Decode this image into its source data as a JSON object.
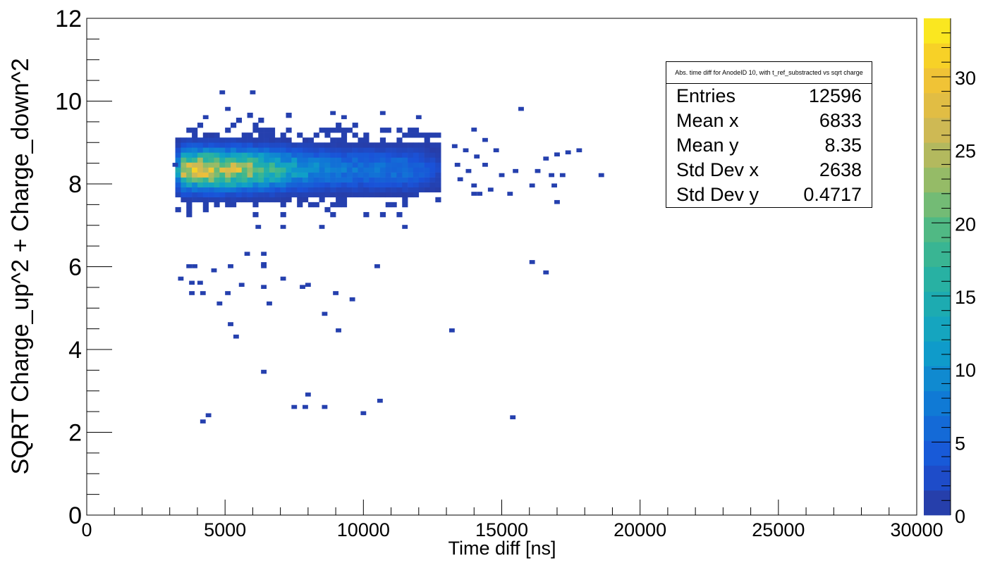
{
  "chart_data": {
    "type": "heatmap",
    "title": "",
    "xlabel": "Time diff [ns]",
    "ylabel": "SQRT Charge_up^2 + Charge_down^2",
    "xlim": [
      0,
      30000
    ],
    "ylim": [
      0,
      12
    ],
    "x_ticks": [
      "0",
      "5000",
      "10000",
      "15000",
      "20000",
      "25000",
      "30000"
    ],
    "y_ticks": [
      "0",
      "2",
      "4",
      "6",
      "8",
      "10",
      "12"
    ],
    "colorbar": {
      "range": [
        0,
        34
      ],
      "ticks": [
        "0",
        "5",
        "10",
        "15",
        "20",
        "25",
        "30"
      ]
    },
    "bin_width_x": 200,
    "bin_height_y": 0.12,
    "core_region": {
      "x_range": [
        3200,
        12800
      ],
      "y_range": [
        7.2,
        9.7
      ],
      "peak_x": 4500,
      "peak_y": 8.35,
      "peak_value": 27
    },
    "sparse_bins": [
      [
        3100,
        8.45
      ],
      [
        4200,
        9.6
      ],
      [
        5000,
        9.8
      ],
      [
        4800,
        10.2
      ],
      [
        5900,
        10.2
      ],
      [
        8800,
        9.7
      ],
      [
        9200,
        9.6
      ],
      [
        10600,
        9.7
      ],
      [
        11900,
        9.6
      ],
      [
        13900,
        9.3
      ],
      [
        14300,
        9.05
      ],
      [
        15600,
        9.8
      ],
      [
        13200,
        8.9
      ],
      [
        13600,
        8.8
      ],
      [
        14000,
        8.65
      ],
      [
        14700,
        8.8
      ],
      [
        14300,
        8.45
      ],
      [
        16500,
        8.6
      ],
      [
        16900,
        8.7
      ],
      [
        17300,
        8.75
      ],
      [
        17700,
        8.8
      ],
      [
        13300,
        8.45
      ],
      [
        13700,
        8.3
      ],
      [
        14900,
        8.2
      ],
      [
        15400,
        8.3
      ],
      [
        16200,
        8.3
      ],
      [
        16700,
        8.2
      ],
      [
        17100,
        8.2
      ],
      [
        18500,
        8.2
      ],
      [
        13400,
        8.1
      ],
      [
        13900,
        7.95
      ],
      [
        14500,
        7.85
      ],
      [
        16000,
        7.95
      ],
      [
        16800,
        7.95
      ],
      [
        13900,
        7.75
      ],
      [
        14100,
        7.75
      ],
      [
        15200,
        7.75
      ],
      [
        16900,
        7.55
      ],
      [
        8400,
        6.95
      ],
      [
        6100,
        6.95
      ],
      [
        7000,
        6.95
      ],
      [
        11400,
        6.95
      ],
      [
        5700,
        6.3
      ],
      [
        6300,
        6.3
      ],
      [
        3600,
        6.0
      ],
      [
        3800,
        6.0
      ],
      [
        5100,
        6.0
      ],
      [
        4500,
        5.9
      ],
      [
        6300,
        6.0
      ],
      [
        6300,
        6.05
      ],
      [
        10400,
        6.0
      ],
      [
        16000,
        6.1
      ],
      [
        16500,
        5.85
      ],
      [
        3300,
        5.7
      ],
      [
        3700,
        5.6
      ],
      [
        4000,
        5.6
      ],
      [
        5500,
        5.55
      ],
      [
        6300,
        5.5
      ],
      [
        7000,
        5.7
      ],
      [
        7700,
        5.5
      ],
      [
        7900,
        5.55
      ],
      [
        3700,
        5.35
      ],
      [
        4100,
        5.35
      ],
      [
        5000,
        5.35
      ],
      [
        8900,
        5.35
      ],
      [
        9500,
        5.2
      ],
      [
        4700,
        5.1
      ],
      [
        6500,
        5.1
      ],
      [
        8500,
        4.85
      ],
      [
        5100,
        4.6
      ],
      [
        9000,
        4.45
      ],
      [
        13100,
        4.45
      ],
      [
        5300,
        4.3
      ],
      [
        6300,
        3.45
      ],
      [
        7900,
        2.9
      ],
      [
        10500,
        2.75
      ],
      [
        7400,
        2.6
      ],
      [
        7800,
        2.6
      ],
      [
        8500,
        2.6
      ],
      [
        9900,
        2.45
      ],
      [
        4300,
        2.4
      ],
      [
        4100,
        2.25
      ],
      [
        15300,
        2.35
      ]
    ]
  },
  "stats": {
    "title": "Abs. time diff for AnodeID 10, with t_ref_substracted vs sqrt charge",
    "rows": [
      {
        "label": "Entries",
        "value": "12596"
      },
      {
        "label": "Mean x",
        "value": "6833"
      },
      {
        "label": "Mean y",
        "value": "8.35"
      },
      {
        "label": "Std Dev x",
        "value": "2638"
      },
      {
        "label": "Std Dev y",
        "value": "0.4717"
      }
    ]
  }
}
